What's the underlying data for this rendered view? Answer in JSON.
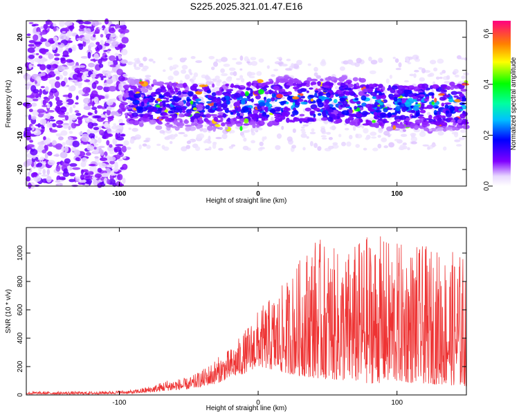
{
  "title": "S225.2025.321.01.47.E16",
  "chart_data": [
    {
      "type": "heatmap",
      "title": "S225.2025.321.01.47.E16",
      "xlabel": "Height of straight line (km)",
      "ylabel": "Frequency (Hz)",
      "xlim": [
        -167,
        150
      ],
      "ylim": [
        -25,
        25
      ],
      "xticks": [
        -100,
        0,
        100
      ],
      "xtick_labels": [
        "-100",
        "0",
        "100"
      ],
      "yticks": [
        -20,
        -10,
        0,
        10,
        20
      ],
      "ytick_labels": [
        "-20",
        "-10",
        "0",
        "10",
        "20"
      ],
      "colorbar": {
        "label": "Normalized spectral amplitude",
        "range": [
          0.0,
          0.65
        ],
        "ticks": [
          0.0,
          0.2,
          0.4,
          0.6
        ],
        "tick_labels": [
          "0.0",
          "0.2",
          "0.4",
          "0.6"
        ]
      },
      "description_regions": [
        {
          "x_range": [
            -167,
            -95
          ],
          "freq_range": [
            -25,
            25
          ],
          "amplitude": 0.05
        },
        {
          "x_range": [
            -95,
            150
          ],
          "freq_range": [
            -5,
            5
          ],
          "amplitude": 0.25
        }
      ]
    },
    {
      "type": "line",
      "xlabel": "Height of straight line (km)",
      "ylabel": "SNR (10 * v/v)",
      "xlim": [
        -167,
        150
      ],
      "ylim": [
        0,
        1180
      ],
      "xticks": [
        -100,
        0,
        100
      ],
      "xtick_labels": [
        "-100",
        "0",
        "100"
      ],
      "yticks": [
        0,
        200,
        400,
        600,
        800,
        1000
      ],
      "ytick_labels": [
        "0",
        "200",
        "400",
        "600",
        "800",
        "1000"
      ],
      "series": [
        {
          "name": "SNR",
          "color": "#ee3333",
          "envelope_x": [
            -167,
            -120,
            -90,
            -75,
            -65,
            -50,
            -40,
            -30,
            -20,
            -10,
            0,
            20,
            40,
            60,
            80,
            100,
            120,
            150
          ],
          "envelope_max": [
            25,
            25,
            35,
            70,
            110,
            120,
            180,
            260,
            330,
            450,
            600,
            800,
            1130,
            1000,
            1150,
            1080,
            1050,
            1000
          ],
          "envelope_min": [
            5,
            5,
            10,
            20,
            30,
            40,
            60,
            80,
            120,
            150,
            200,
            150,
            120,
            100,
            80,
            90,
            80,
            60
          ]
        }
      ]
    }
  ]
}
